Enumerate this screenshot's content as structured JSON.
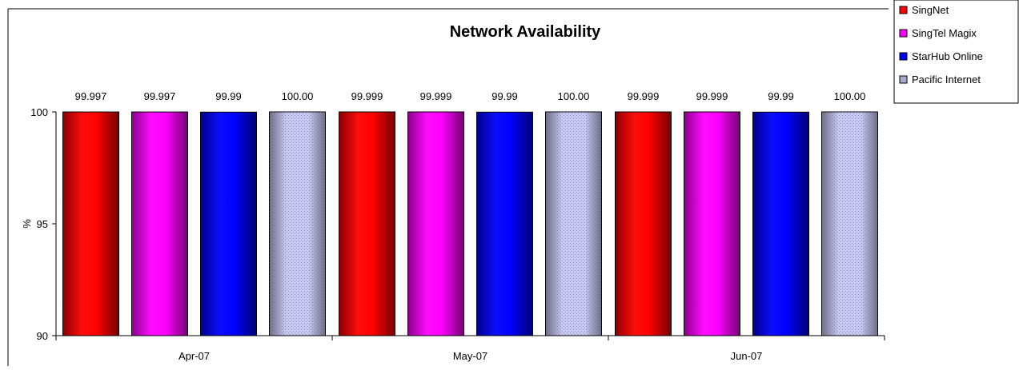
{
  "chart_data": {
    "type": "bar",
    "title": "Network Availability",
    "xlabel": "",
    "ylabel": "%",
    "ylim": [
      90,
      100
    ],
    "yticks": [
      90,
      95,
      100
    ],
    "grid": false,
    "legend_position": "top-right",
    "categories": [
      "Apr-07",
      "May-07",
      "Jun-07"
    ],
    "series": [
      {
        "name": "SingNet",
        "color": "#ff0000",
        "pattern": "solid",
        "values": [
          99.997,
          99.999,
          99.999
        ],
        "labels": [
          "99.997",
          "99.999",
          "99.999"
        ]
      },
      {
        "name": "SingTel Magix",
        "color": "#ff00ff",
        "pattern": "solid",
        "values": [
          99.997,
          99.999,
          99.999
        ],
        "labels": [
          "99.997",
          "99.999",
          "99.999"
        ]
      },
      {
        "name": "StarHub Online",
        "color": "#0000ff",
        "pattern": "solid",
        "values": [
          99.99,
          99.99,
          99.99
        ],
        "labels": [
          "99.99",
          "99.99",
          "99.99"
        ]
      },
      {
        "name": "Pacific Internet",
        "color": "#c8c8f4",
        "pattern": "dotted",
        "values": [
          100.0,
          100.0,
          100.0
        ],
        "labels": [
          "100.00",
          "100.00",
          "100.00"
        ]
      }
    ]
  }
}
